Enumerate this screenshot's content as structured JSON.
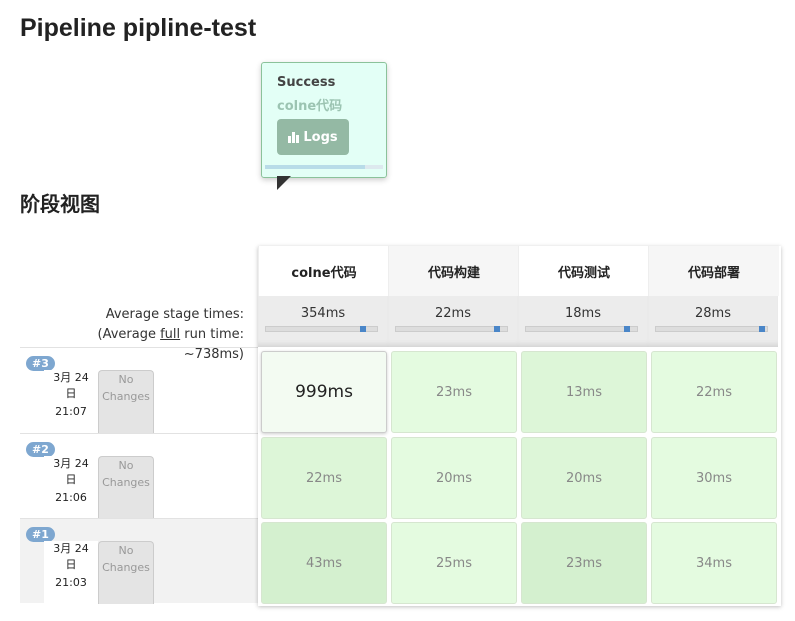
{
  "title": "Pipeline pipline-test",
  "section_title": "阶段视图",
  "avg_label": {
    "line1": "Average stage times:",
    "line2_pre": "(Average ",
    "line2_link": "full",
    "line2_post": " run time:",
    "line3": "~738ms)"
  },
  "stages": [
    {
      "name": "colne代码",
      "avg": "354ms",
      "avg_fraction": 0.85
    },
    {
      "name": "代码构建",
      "avg": "22ms",
      "avg_fraction": 0.88
    },
    {
      "name": "代码测试",
      "avg": "18ms",
      "avg_fraction": 0.88
    },
    {
      "name": "代码部署",
      "avg": "28ms",
      "avg_fraction": 0.93
    }
  ],
  "runs": [
    {
      "badge": "#3",
      "date": "3月 24",
      "date2": "日",
      "time": "21:07",
      "changes": "No Changes",
      "times": [
        "999ms",
        "23ms",
        "13ms",
        "22ms"
      ]
    },
    {
      "badge": "#2",
      "date": "3月 24",
      "date2": "日",
      "time": "21:06",
      "changes": "No Changes",
      "times": [
        "22ms",
        "20ms",
        "20ms",
        "30ms"
      ]
    },
    {
      "badge": "#1",
      "date": "3月 24",
      "date2": "日",
      "time": "21:03",
      "changes": "No Changes",
      "times": [
        "43ms",
        "25ms",
        "23ms",
        "34ms"
      ]
    }
  ],
  "popover": {
    "status": "Success",
    "logs_label": "Logs"
  }
}
